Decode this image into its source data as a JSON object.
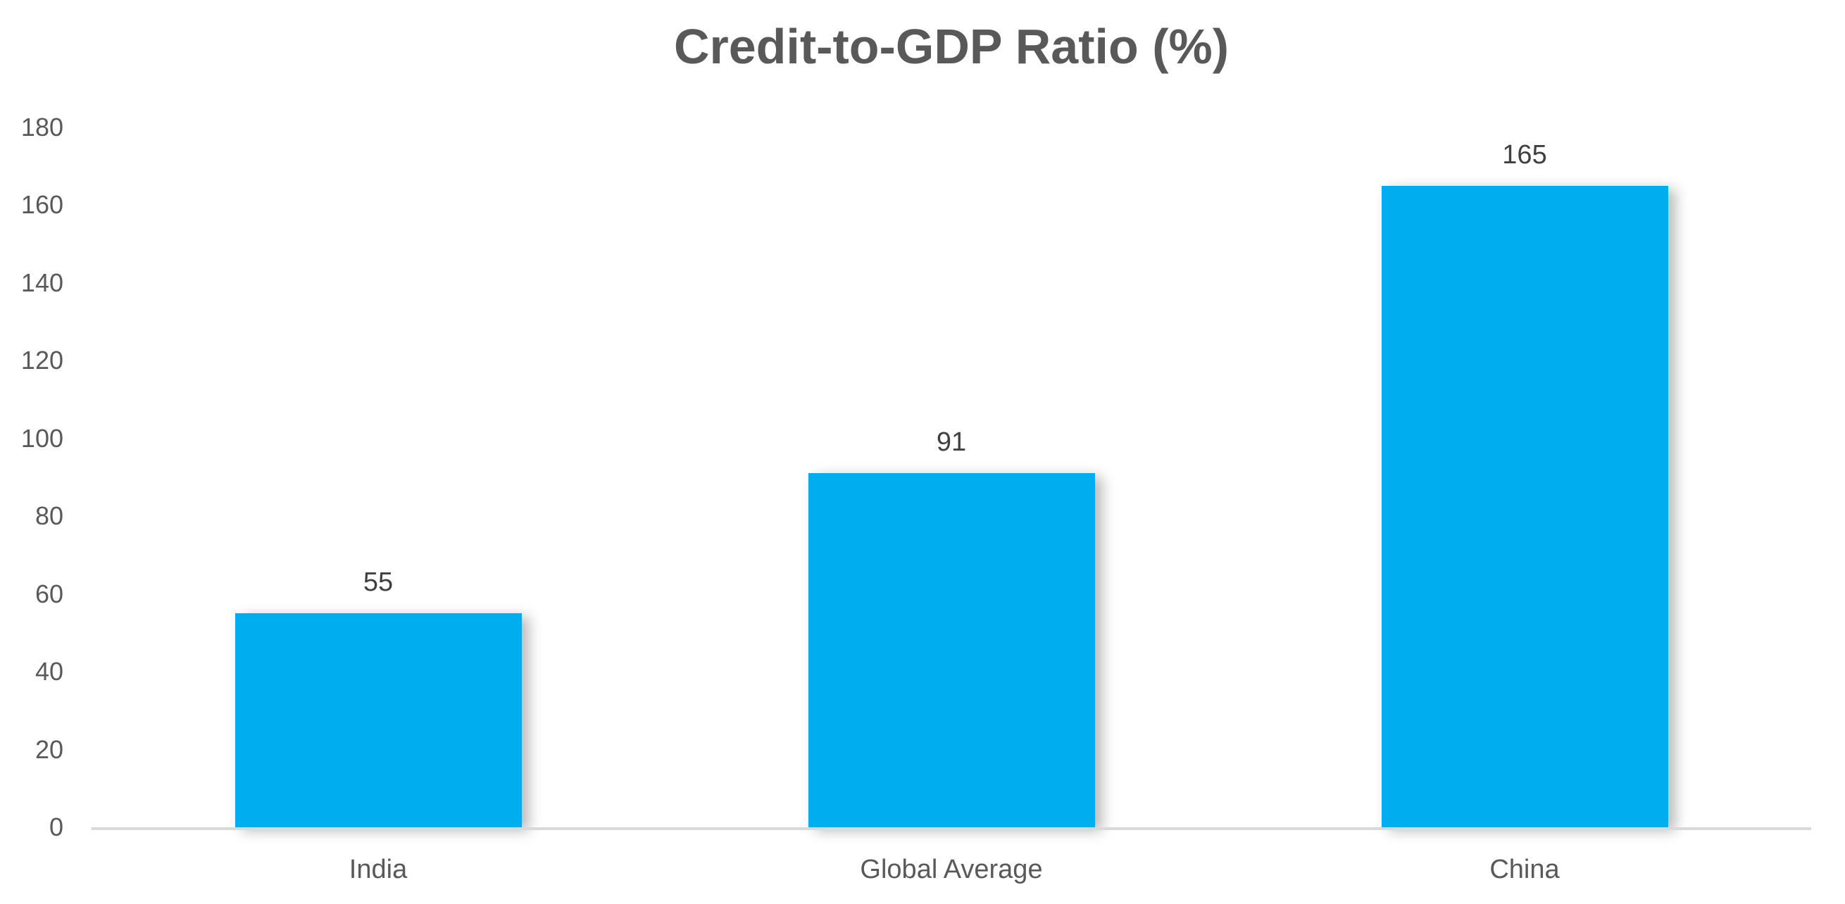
{
  "chart_data": {
    "type": "bar",
    "title": "Credit-to-GDP Ratio (%)",
    "categories": [
      "India",
      "Global Average",
      "China"
    ],
    "values": [
      55,
      91,
      165
    ],
    "xlabel": "",
    "ylabel": "",
    "ylim": [
      0,
      180
    ],
    "yticks": [
      0,
      20,
      40,
      60,
      80,
      100,
      120,
      140,
      160,
      180
    ],
    "grid": false,
    "legend": false,
    "data_labels_shown": true,
    "colors": {
      "bar_fill": "#00AEF0",
      "title_text": "#595959",
      "axis_tick_text": "#595959",
      "category_text": "#595959",
      "data_label_text": "#404040",
      "axis_line": "#D9D9D9",
      "background": "#FFFFFF"
    }
  }
}
